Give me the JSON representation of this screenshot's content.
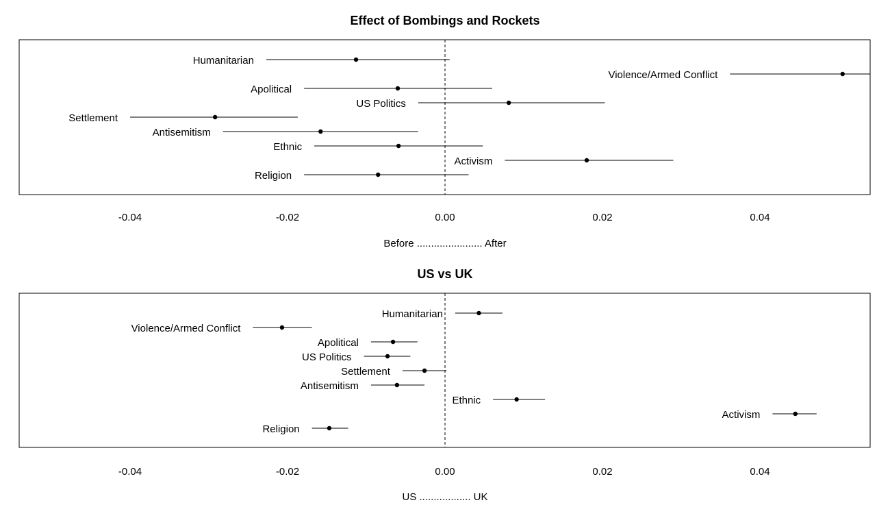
{
  "chart_data": [
    {
      "type": "scatter",
      "title": "Effect of Bombings and Rockets",
      "xlabel": "Before ....................... After",
      "ylabel": "",
      "xlim": [
        -0.054,
        0.054
      ],
      "x_ticks": [
        "-0.04",
        "-0.02",
        "0.00",
        "0.02",
        "0.04"
      ],
      "reference_line": 0,
      "points": [
        {
          "label": "Humanitarian",
          "estimate": -0.0113,
          "lower": -0.0227,
          "upper": 0.0006
        },
        {
          "label": "Violence/Armed Conflict",
          "estimate": 0.0505,
          "lower": 0.0362,
          "upper": 0.054
        },
        {
          "label": "Apolitical",
          "estimate": -0.006,
          "lower": -0.0179,
          "upper": 0.006
        },
        {
          "label": "US Politics",
          "estimate": 0.0081,
          "lower": -0.0034,
          "upper": 0.0203
        },
        {
          "label": "Settlement",
          "estimate": -0.0292,
          "lower": -0.04,
          "upper": -0.0187
        },
        {
          "label": "Antisemitism",
          "estimate": -0.0158,
          "lower": -0.0282,
          "upper": -0.0034
        },
        {
          "label": "Ethnic",
          "estimate": -0.0059,
          "lower": -0.0166,
          "upper": 0.0048
        },
        {
          "label": "Activism",
          "estimate": 0.018,
          "lower": 0.0076,
          "upper": 0.029
        },
        {
          "label": "Religion",
          "estimate": -0.0085,
          "lower": -0.0179,
          "upper": 0.003
        }
      ]
    },
    {
      "type": "scatter",
      "title": "US vs UK",
      "xlabel": "US .................. UK",
      "ylabel": "",
      "xlim": [
        -0.054,
        0.054
      ],
      "x_ticks": [
        "-0.04",
        "-0.02",
        "0.00",
        "0.02",
        "0.04"
      ],
      "reference_line": 0,
      "points": [
        {
          "label": "Humanitarian",
          "estimate": 0.0043,
          "lower": 0.0013,
          "upper": 0.0073
        },
        {
          "label": "Violence/Armed Conflict",
          "estimate": -0.0207,
          "lower": -0.0244,
          "upper": -0.0169
        },
        {
          "label": "Apolitical",
          "estimate": -0.0066,
          "lower": -0.0094,
          "upper": -0.0035
        },
        {
          "label": "US Politics",
          "estimate": -0.0073,
          "lower": -0.0103,
          "upper": -0.0044
        },
        {
          "label": "Settlement",
          "estimate": -0.0026,
          "lower": -0.0054,
          "upper": 0.0002
        },
        {
          "label": "Antisemitism",
          "estimate": -0.0061,
          "lower": -0.0094,
          "upper": -0.0026
        },
        {
          "label": "Ethnic",
          "estimate": 0.0091,
          "lower": 0.0061,
          "upper": 0.0127
        },
        {
          "label": "Activism",
          "estimate": 0.0445,
          "lower": 0.0416,
          "upper": 0.0472
        },
        {
          "label": "Religion",
          "estimate": -0.0147,
          "lower": -0.0169,
          "upper": -0.0123
        }
      ]
    }
  ]
}
